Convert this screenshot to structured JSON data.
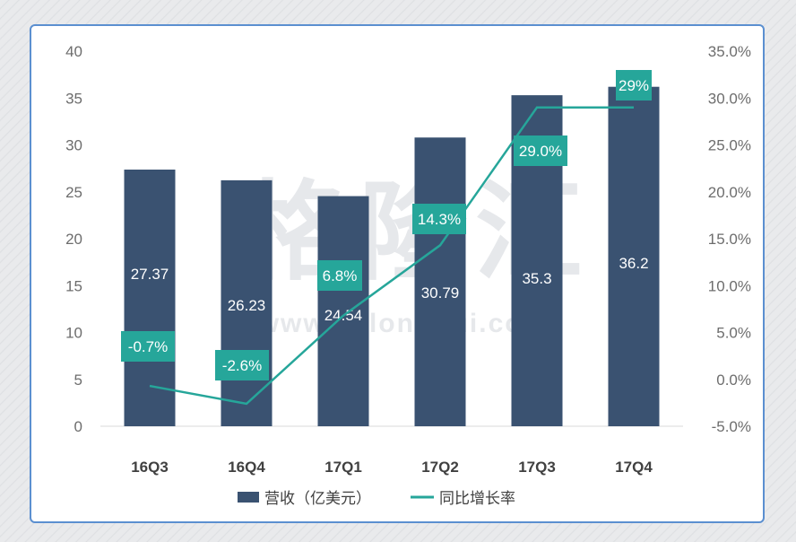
{
  "watermark": {
    "logo": "格隆汇",
    "url": "www.gelonghui.com"
  },
  "chart_data": {
    "type": "bar+line",
    "categories": [
      "16Q3",
      "16Q4",
      "17Q1",
      "17Q2",
      "17Q3",
      "17Q4"
    ],
    "series": [
      {
        "name": "营收（亿美元）",
        "type": "bar",
        "axis": "left",
        "values": [
          27.37,
          26.23,
          24.54,
          30.79,
          35.3,
          36.2
        ],
        "labels": [
          "27.37",
          "26.23",
          "24.54",
          "30.79",
          "35.3",
          "36.2"
        ],
        "color": "#3a5271"
      },
      {
        "name": "同比增长率",
        "type": "line",
        "axis": "right",
        "values": [
          -0.7,
          -2.6,
          6.8,
          14.3,
          29.0,
          29.0
        ],
        "labels": [
          "-0.7%",
          "-2.6%",
          "6.8%",
          "14.3%",
          "29.0%",
          "29%"
        ],
        "color": "#26a69a"
      }
    ],
    "left_axis": {
      "min": 0,
      "max": 40,
      "ticks": [
        "0",
        "5",
        "10",
        "15",
        "20",
        "25",
        "30",
        "35",
        "40"
      ]
    },
    "right_axis": {
      "min": -5,
      "max": 35,
      "ticks": [
        "-5.0%",
        "0.0%",
        "5.0%",
        "10.0%",
        "15.0%",
        "20.0%",
        "25.0%",
        "30.0%",
        "35.0%"
      ]
    },
    "grid": false,
    "legend_position": "bottom"
  }
}
